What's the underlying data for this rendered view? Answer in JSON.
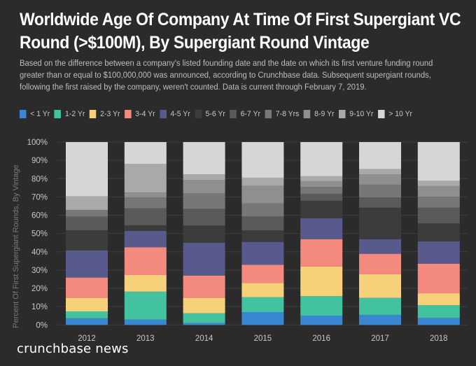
{
  "title": "Worldwide Age Of Company At Time Of First Supergiant VC Round (>$100M), By Supergiant Round Vintage",
  "subtitle": "Based on the difference between a company's listed founding date and the date on which its first venture funding round greater than or equal to $100,000,000 was announced, according to Crunchbase data. Subsequent supergiant rounds, following the first raised by the company, weren't counted. Data is current through February 7, 2019.",
  "footer": "crunchbase news",
  "chart_data": {
    "type": "bar",
    "stacked": true,
    "title": "Worldwide Age Of Company At Time Of First Supergiant VC Round (>$100M), By Supergiant Round Vintage",
    "xlabel": "",
    "ylabel": "Percent Of First Supergiant Rounds, By Vintage",
    "ylim": [
      0,
      100
    ],
    "yticks": [
      "0%",
      "10%",
      "20%",
      "30%",
      "40%",
      "50%",
      "60%",
      "70%",
      "80%",
      "90%",
      "100%"
    ],
    "grid": true,
    "legend_position": "top",
    "categories": [
      "2012",
      "2013",
      "2014",
      "2015",
      "2016",
      "2017",
      "2018"
    ],
    "series": [
      {
        "name": "< 1 Yr",
        "color": "#3a86d0",
        "values": [
          3.6,
          2.9,
          1.0,
          7.0,
          5.1,
          5.5,
          3.8
        ]
      },
      {
        "name": "1-2 Yr",
        "color": "#43c2a0",
        "values": [
          3.8,
          15.3,
          5.4,
          8.2,
          10.6,
          9.3,
          7.0
        ]
      },
      {
        "name": "2-3 Yr",
        "color": "#f7d17a",
        "values": [
          7.4,
          9.1,
          8.4,
          7.8,
          16.3,
          13.0,
          6.5
        ]
      },
      {
        "name": "3-4 Yr",
        "color": "#f48a7e",
        "values": [
          11.1,
          15.2,
          12.2,
          9.9,
          14.9,
          11.1,
          16.2
        ]
      },
      {
        "name": "4-5 Yr",
        "color": "#585a8c",
        "values": [
          14.9,
          8.9,
          17.9,
          12.5,
          11.4,
          8.0,
          12.2
        ]
      },
      {
        "name": "5-6 Yr",
        "color": "#3c3c3c",
        "values": [
          11.0,
          3.1,
          9.4,
          6.3,
          9.6,
          17.2,
          9.8
        ]
      },
      {
        "name": "6-7 Yr",
        "color": "#5a5a5a",
        "values": [
          7.4,
          9.3,
          9.2,
          7.6,
          3.8,
          5.6,
          8.6
        ]
      },
      {
        "name": "7-8 Yrs",
        "color": "#777777",
        "values": [
          3.7,
          5.9,
          8.4,
          7.1,
          3.8,
          7.0,
          6.0
        ]
      },
      {
        "name": "8-9 Yr",
        "color": "#8f8f8f",
        "values": [
          0.0,
          2.7,
          7.3,
          9.6,
          3.1,
          5.6,
          5.8
        ]
      },
      {
        "name": "9-10 Yr",
        "color": "#a9a9a9",
        "values": [
          7.4,
          15.6,
          3.1,
          4.5,
          2.7,
          2.9,
          2.9
        ]
      },
      {
        "name": "> 10 Yr",
        "color": "#d6d6d6",
        "values": [
          29.7,
          12.0,
          17.7,
          19.5,
          18.7,
          14.8,
          21.2
        ]
      }
    ]
  }
}
